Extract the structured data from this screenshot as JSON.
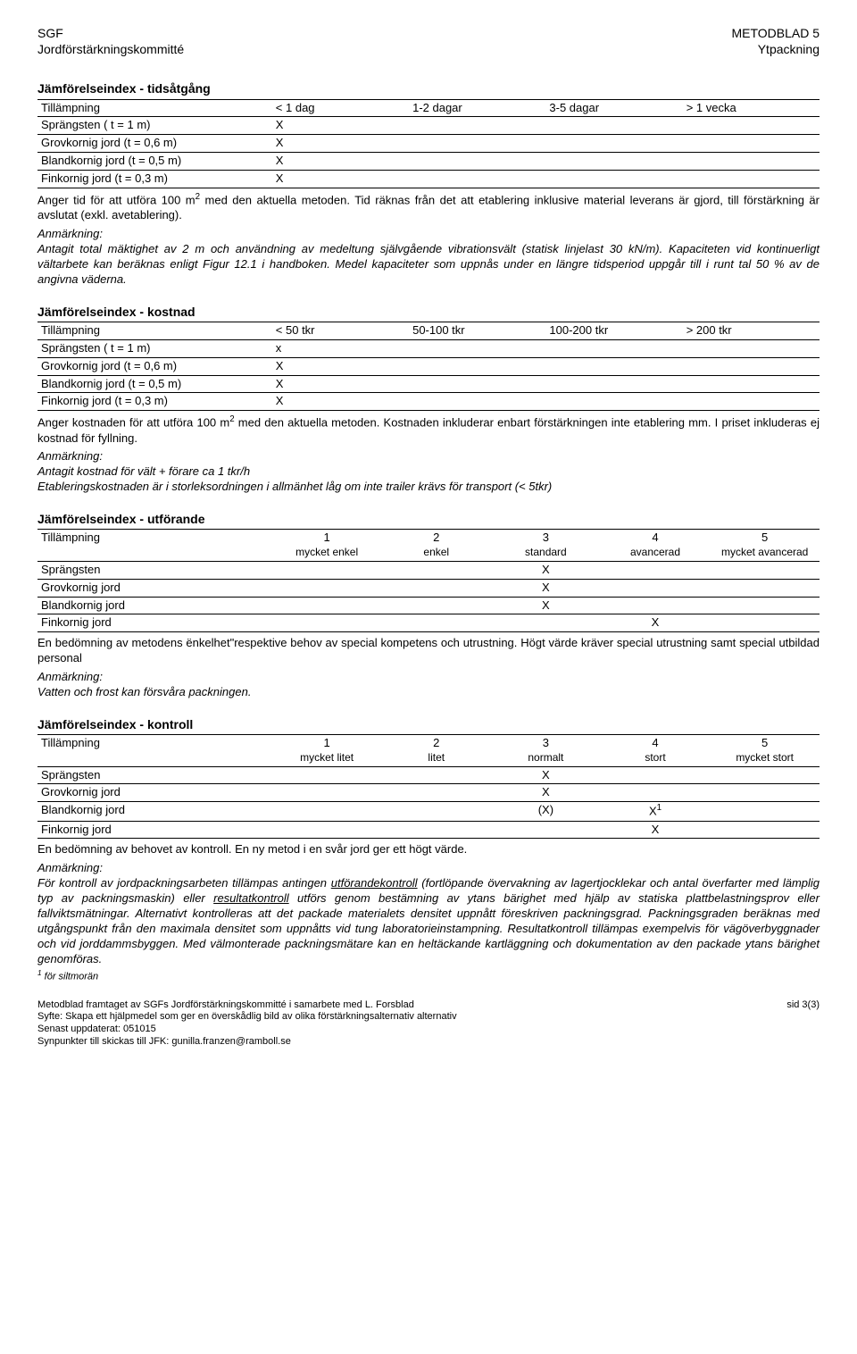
{
  "header": {
    "left1": "SGF",
    "left2": "Jordförstärkningskommitté",
    "right1": "METODBLAD 5",
    "right2": "Ytpackning"
  },
  "time": {
    "title": "Jämförelseindex - tidsåtgång",
    "cols": [
      "Tillämpning",
      "< 1 dag",
      "1-2 dagar",
      "3-5 dagar",
      "> 1 vecka"
    ],
    "rows": [
      [
        "Sprängsten ( t = 1 m)",
        "X",
        "",
        "",
        ""
      ],
      [
        "Grovkornig jord (t = 0,6 m)",
        "X",
        "",
        "",
        ""
      ],
      [
        "Blandkornig jord (t = 0,5 m)",
        "X",
        "",
        "",
        ""
      ],
      [
        "Finkornig jord (t = 0,3 m)",
        "X",
        "",
        "",
        ""
      ]
    ],
    "body_pre": "Anger tid för att utföra 100 m",
    "body_post": " med den aktuella metoden. Tid räknas från det att etablering inklusive material leverans är gjord, till förstärkning är avslutat (exkl. avetablering).",
    "remark_label": "Anmärkning:",
    "remark_body": "Antagit total mäktighet av 2 m och användning av medeltung självgående vibrationsvält (statisk linjelast 30 kN/m). Kapaciteten vid kontinuerligt vältarbete kan beräknas enligt Figur 12.1 i handboken. Medel kapaciteter som uppnås under en längre tidsperiod uppgår till i runt tal 50 % av de angivna väderna."
  },
  "cost": {
    "title": "Jämförelseindex - kostnad",
    "cols": [
      "Tillämpning",
      "< 50 tkr",
      "50-100 tkr",
      "100-200 tkr",
      "> 200 tkr"
    ],
    "rows": [
      [
        "Sprängsten ( t = 1 m)",
        "x",
        "",
        "",
        ""
      ],
      [
        "Grovkornig jord (t = 0,6 m)",
        "X",
        "",
        "",
        ""
      ],
      [
        "Blandkornig jord (t = 0,5 m)",
        "X",
        "",
        "",
        ""
      ],
      [
        "Finkornig jord (t = 0,3 m)",
        "X",
        "",
        "",
        ""
      ]
    ],
    "body_pre": "Anger kostnaden för att utföra 100 m",
    "body_post": " med den aktuella metoden. Kostnaden inkluderar enbart förstärkningen inte etablering mm. I priset inkluderas ej kostnad för fyllning.",
    "remark_label": "Anmärkning:",
    "remark_body1": "Antagit kostnad för vält + förare ca 1 tkr/h",
    "remark_body2": "Etableringskostnaden är i storleksordningen i allmänhet låg om inte trailer krävs för transport (< 5tkr)"
  },
  "exec": {
    "title": "Jämförelseindex - utförande",
    "cols_top": [
      "Tillämpning",
      "1",
      "2",
      "3",
      "4",
      "5"
    ],
    "cols_sub": [
      "",
      "mycket enkel",
      "enkel",
      "standard",
      "avancerad",
      "mycket avancerad"
    ],
    "rows": [
      [
        "Sprängsten",
        "",
        "",
        "X",
        "",
        ""
      ],
      [
        "Grovkornig jord",
        "",
        "",
        "X",
        "",
        ""
      ],
      [
        "Blandkornig jord",
        "",
        "",
        "X",
        "",
        ""
      ],
      [
        "Finkornig jord",
        "",
        "",
        "",
        "X",
        ""
      ]
    ],
    "body": "En bedömning av metodens ënkelhet\"respektive behov av special kompetens och utrustning. Högt värde kräver special utrustning samt special utbildad personal",
    "remark_label": "Anmärkning:",
    "remark_body": "Vatten och frost kan försvåra packningen."
  },
  "ctrl": {
    "title": "Jämförelseindex - kontroll",
    "cols_top": [
      "Tillämpning",
      "1",
      "2",
      "3",
      "4",
      "5"
    ],
    "cols_sub": [
      "",
      "mycket litet",
      "litet",
      "normalt",
      "stort",
      "mycket stort"
    ],
    "rows": [
      [
        "Sprängsten",
        "",
        "",
        "X",
        "",
        ""
      ],
      [
        "Grovkornig jord",
        "",
        "",
        "X",
        "",
        ""
      ],
      [
        "Blandkornig jord",
        "",
        "",
        "(X)",
        "",
        ""
      ],
      [
        "Finkornig jord",
        "",
        "",
        "",
        "X",
        ""
      ]
    ],
    "x1_sup": "1",
    "x1_base": "X",
    "body": "En bedömning av behovet av kontroll. En ny metod i en svår jord ger ett högt värde.",
    "remark_label": "Anmärkning:",
    "remark_pre": "För kontroll av jordpackningsarbeten tillämpas antingen ",
    "remark_u1": "utförandekontroll",
    "remark_mid1": " (fortlöpande övervakning av lagertjocklekar och antal överfarter med lämplig typ av packningsmaskin) eller ",
    "remark_u2": "resultatkontroll",
    "remark_post": " utförs genom bestämning av ytans bärighet med hjälp av statiska plattbelastningsprov eller fallviktsmätningar. Alternativt kontrolleras att det packade materialets densitet uppnått föreskriven packningsgrad. Packningsgraden beräknas med utgångspunkt från den maximala densitet som uppnåtts vid tung laboratorieinstampning. Resultatkontroll tillämpas exempelvis för vägöverbyggnader och vid jorddammsbyggen. Med välmonterade packningsmätare kan en heltäckande kartläggning och dokumentation av den packade ytans bärighet genomföras.",
    "footnote_sup": "1",
    "footnote_text": " för siltmorän"
  },
  "footer": {
    "l1": "Metodblad framtaget av SGFs Jordförstärkningskommitté i samarbete med L. Forsblad",
    "l2": "Syfte: Skapa ett hjälpmedel som ger en överskådlig bild av olika förstärkningsalternativ alternativ",
    "l3": "Senast uppdaterat: 051015",
    "l4": "Synpunkter till skickas till JFK: gunilla.franzen@ramboll.se",
    "page": "sid 3(3)"
  }
}
